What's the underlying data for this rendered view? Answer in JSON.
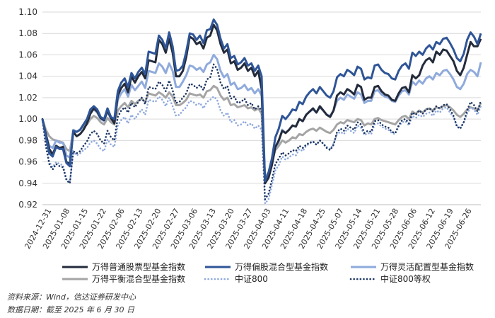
{
  "chart_data": {
    "type": "line",
    "y_ticks": [
      "0.92",
      "0.94",
      "0.96",
      "0.98",
      "1.00",
      "1.02",
      "1.04",
      "1.06",
      "1.08",
      "1.10"
    ],
    "ylim": [
      0.92,
      1.1
    ],
    "x_ticks": [
      "2024-12-31",
      "2025-01-08",
      "2025-01-15",
      "2025-01-22",
      "2025-02-06",
      "2025-02-13",
      "2025-02-20",
      "2025-02-27",
      "2025-03-06",
      "2025-03-13",
      "2025-03-20",
      "2025-03-27",
      "2025-04-03",
      "2025-04-11",
      "2025-04-18",
      "2025-04-25",
      "2025-05-07",
      "2025-05-14",
      "2025-05-21",
      "2025-05-28",
      "2025-06-06",
      "2025-06-12",
      "2025-06-19",
      "2025-06-26"
    ],
    "grid": true,
    "legend_position": "bottom",
    "series": [
      {
        "name": "万得普通股票型基金指数",
        "color": "#232b3b",
        "style": "solid",
        "values": [
          1.0,
          0.986,
          0.972,
          0.967,
          0.975,
          0.973,
          0.974,
          0.96,
          0.958,
          0.988,
          0.984,
          0.986,
          0.99,
          0.996,
          1.005,
          1.01,
          1.007,
          1.001,
          0.999,
          1.008,
          1.001,
          0.996,
          1.022,
          1.029,
          1.033,
          1.025,
          1.04,
          1.034,
          1.04,
          1.044,
          1.038,
          1.055,
          1.054,
          1.053,
          1.074,
          1.07,
          1.062,
          1.075,
          1.062,
          1.04,
          1.04,
          1.045,
          1.058,
          1.077,
          1.075,
          1.07,
          1.072,
          1.066,
          1.076,
          1.078,
          1.088,
          1.083,
          1.07,
          1.062,
          1.065,
          1.052,
          1.054,
          1.046,
          1.048,
          1.052,
          1.045,
          1.048,
          1.04,
          1.045,
          1.028,
          0.94,
          0.945,
          0.957,
          0.974,
          0.98,
          0.989,
          0.987,
          0.99,
          0.994,
          0.993,
          1.0,
          0.998,
          1.004,
          1.007,
          1.01,
          1.006,
          1.012,
          1.008,
          1.004,
          1.002,
          1.008,
          1.022,
          1.025,
          1.023,
          1.028,
          1.026,
          1.023,
          1.032,
          1.03,
          1.018,
          1.02,
          1.02,
          1.03,
          1.031,
          1.026,
          1.023,
          1.022,
          1.018,
          1.017,
          1.024,
          1.029,
          1.03,
          1.025,
          1.041,
          1.038,
          1.041,
          1.05,
          1.055,
          1.057,
          1.053,
          1.063,
          1.06,
          1.065,
          1.064,
          1.059,
          1.054,
          1.045,
          1.041,
          1.048,
          1.06,
          1.072,
          1.068,
          1.068,
          1.075
        ]
      },
      {
        "name": "万得偏股混合型基金指数",
        "color": "#2f5597",
        "style": "solid",
        "values": [
          1.0,
          0.984,
          0.968,
          0.965,
          0.974,
          0.972,
          0.972,
          0.959,
          0.956,
          0.989,
          0.988,
          0.99,
          0.995,
          1.0,
          1.009,
          1.012,
          1.009,
          1.002,
          1.0,
          1.01,
          1.002,
          1.0,
          1.026,
          1.034,
          1.038,
          1.03,
          1.043,
          1.038,
          1.044,
          1.048,
          1.042,
          1.063,
          1.062,
          1.061,
          1.078,
          1.074,
          1.066,
          1.081,
          1.068,
          1.045,
          1.046,
          1.05,
          1.063,
          1.08,
          1.079,
          1.074,
          1.078,
          1.071,
          1.083,
          1.084,
          1.093,
          1.088,
          1.075,
          1.066,
          1.07,
          1.057,
          1.059,
          1.051,
          1.053,
          1.057,
          1.05,
          1.052,
          1.045,
          1.05,
          1.04,
          0.942,
          0.95,
          0.963,
          0.983,
          0.991,
          1.003,
          1.0,
          1.004,
          1.009,
          1.008,
          1.016,
          1.014,
          1.021,
          1.025,
          1.028,
          1.024,
          1.03,
          1.026,
          1.022,
          1.02,
          1.026,
          1.039,
          1.042,
          1.04,
          1.046,
          1.044,
          1.041,
          1.049,
          1.047,
          1.037,
          1.039,
          1.038,
          1.05,
          1.051,
          1.046,
          1.043,
          1.042,
          1.038,
          1.037,
          1.045,
          1.05,
          1.052,
          1.047,
          1.062,
          1.059,
          1.063,
          1.06,
          1.066,
          1.069,
          1.065,
          1.072,
          1.07,
          1.075,
          1.076,
          1.071,
          1.065,
          1.057,
          1.054,
          1.061,
          1.074,
          1.081,
          1.077,
          1.07,
          1.08
        ]
      },
      {
        "name": "万得灵活配置型基金指数",
        "color": "#8faadc",
        "style": "solid",
        "values": [
          1.0,
          0.986,
          0.975,
          0.973,
          0.98,
          0.978,
          0.978,
          0.966,
          0.964,
          0.99,
          0.988,
          0.99,
          0.995,
          0.998,
          1.006,
          1.009,
          1.006,
          1.0,
          0.998,
          1.007,
          1.0,
          0.997,
          1.018,
          1.024,
          1.028,
          1.021,
          1.032,
          1.027,
          1.031,
          1.035,
          1.029,
          1.045,
          1.044,
          1.043,
          1.052,
          1.049,
          1.043,
          1.052,
          1.045,
          1.03,
          1.03,
          1.035,
          1.041,
          1.05,
          1.049,
          1.046,
          1.048,
          1.044,
          1.051,
          1.053,
          1.06,
          1.056,
          1.045,
          1.039,
          1.042,
          1.032,
          1.034,
          1.028,
          1.029,
          1.032,
          1.027,
          1.029,
          1.024,
          1.028,
          1.022,
          0.94,
          0.946,
          0.957,
          0.973,
          0.979,
          0.99,
          0.987,
          0.99,
          0.994,
          0.993,
          1.0,
          0.998,
          1.004,
          1.007,
          1.009,
          1.006,
          1.011,
          1.008,
          1.004,
          1.003,
          1.008,
          1.017,
          1.02,
          1.018,
          1.023,
          1.021,
          1.019,
          1.025,
          1.023,
          1.015,
          1.017,
          1.017,
          1.026,
          1.027,
          1.023,
          1.021,
          1.02,
          1.017,
          1.016,
          1.022,
          1.026,
          1.027,
          1.023,
          1.035,
          1.032,
          1.036,
          1.033,
          1.038,
          1.04,
          1.037,
          1.043,
          1.041,
          1.045,
          1.046,
          1.042,
          1.037,
          1.03,
          1.028,
          1.033,
          1.042,
          1.046,
          1.044,
          1.04,
          1.053
        ]
      },
      {
        "name": "万得平衡混合型基金指数",
        "color": "#a5a5a5",
        "style": "solid",
        "values": [
          1.0,
          0.99,
          0.984,
          0.981,
          0.98,
          0.979,
          0.978,
          0.972,
          0.97,
          0.989,
          0.988,
          0.99,
          0.993,
          0.995,
          1.0,
          1.003,
          1.001,
          0.997,
          0.995,
          1.001,
          0.997,
          0.995,
          1.008,
          1.012,
          1.015,
          1.011,
          1.017,
          1.014,
          1.017,
          1.019,
          1.016,
          1.024,
          1.023,
          1.022,
          1.025,
          1.023,
          1.02,
          1.025,
          1.021,
          1.013,
          1.013,
          1.015,
          1.018,
          1.024,
          1.023,
          1.022,
          1.023,
          1.02,
          1.026,
          1.027,
          1.031,
          1.029,
          1.022,
          1.018,
          1.02,
          1.013,
          1.014,
          1.011,
          1.012,
          1.013,
          1.01,
          1.011,
          1.008,
          1.01,
          1.005,
          0.946,
          0.95,
          0.96,
          0.971,
          0.975,
          0.98,
          0.978,
          0.98,
          0.983,
          0.982,
          0.986,
          0.985,
          0.988,
          0.99,
          0.991,
          0.989,
          0.992,
          0.99,
          0.988,
          0.987,
          0.99,
          0.995,
          0.997,
          0.996,
          0.999,
          0.998,
          0.997,
          1.0,
          0.999,
          0.994,
          0.996,
          0.995,
          1.0,
          1.001,
          0.999,
          0.998,
          0.997,
          0.996,
          0.995,
          0.999,
          1.002,
          1.003,
          1.0,
          1.007,
          1.005,
          1.008,
          1.006,
          1.009,
          1.01,
          1.008,
          1.011,
          1.01,
          1.012,
          1.013,
          1.011,
          1.008,
          1.004,
          1.002,
          1.005,
          1.009,
          1.011,
          1.01,
          1.008,
          1.015
        ]
      },
      {
        "name": "中证800",
        "color": "#8faadc",
        "style": "dotted",
        "values": [
          1.0,
          0.978,
          0.96,
          0.955,
          0.96,
          0.958,
          0.957,
          0.944,
          0.941,
          0.97,
          0.966,
          0.968,
          0.971,
          0.973,
          0.978,
          0.98,
          0.977,
          0.972,
          0.97,
          0.981,
          0.976,
          0.974,
          0.994,
          0.999,
          1.002,
          0.996,
          1.004,
          1.0,
          1.005,
          1.009,
          1.004,
          1.018,
          1.017,
          1.016,
          1.021,
          1.018,
          1.012,
          1.02,
          1.012,
          1.003,
          1.004,
          1.008,
          1.011,
          1.017,
          1.016,
          1.013,
          1.015,
          1.01,
          1.016,
          1.018,
          1.021,
          1.018,
          1.008,
          1.003,
          1.006,
          0.997,
          0.999,
          0.994,
          0.995,
          0.998,
          0.994,
          0.996,
          0.991,
          0.994,
          0.99,
          0.921,
          0.925,
          0.938,
          0.952,
          0.957,
          0.965,
          0.962,
          0.964,
          0.967,
          0.966,
          0.972,
          0.97,
          0.975,
          0.977,
          0.979,
          0.976,
          0.98,
          0.977,
          0.974,
          0.972,
          0.977,
          0.986,
          0.988,
          0.986,
          0.991,
          0.989,
          0.987,
          0.994,
          0.992,
          0.985,
          0.987,
          0.986,
          0.995,
          0.996,
          0.993,
          0.991,
          0.99,
          0.987,
          0.986,
          0.993,
          0.997,
          0.998,
          0.994,
          1.003,
          1.001,
          1.004,
          1.002,
          1.005,
          1.006,
          1.003,
          1.008,
          1.006,
          1.01,
          1.011,
          1.006,
          1.002,
          0.994,
          0.992,
          0.997,
          1.005,
          1.011,
          1.009,
          1.004,
          1.012
        ]
      },
      {
        "name": "中证800等权",
        "color": "#1f3864",
        "style": "dotted",
        "values": [
          1.0,
          0.975,
          0.958,
          0.953,
          0.958,
          0.956,
          0.955,
          0.943,
          0.94,
          0.97,
          0.968,
          0.97,
          0.975,
          0.979,
          0.986,
          0.989,
          0.986,
          0.98,
          0.977,
          0.989,
          0.983,
          0.98,
          1.002,
          1.008,
          1.011,
          1.006,
          1.015,
          1.011,
          1.016,
          1.02,
          1.014,
          1.03,
          1.029,
          1.028,
          1.035,
          1.032,
          1.026,
          1.036,
          1.027,
          1.015,
          1.016,
          1.02,
          1.024,
          1.033,
          1.032,
          1.029,
          1.032,
          1.027,
          1.037,
          1.039,
          1.051,
          1.047,
          1.034,
          1.028,
          1.031,
          1.019,
          1.021,
          1.015,
          1.016,
          1.019,
          1.013,
          1.015,
          1.009,
          1.012,
          1.008,
          0.925,
          0.93,
          0.943,
          0.958,
          0.963,
          0.969,
          0.966,
          0.968,
          0.971,
          0.97,
          0.975,
          0.973,
          0.976,
          0.978,
          0.979,
          0.976,
          0.98,
          0.977,
          0.973,
          0.971,
          0.976,
          0.988,
          0.991,
          0.989,
          0.994,
          0.992,
          0.99,
          0.997,
          0.995,
          0.987,
          0.989,
          0.988,
          0.998,
          0.999,
          0.995,
          0.993,
          0.992,
          0.988,
          0.987,
          0.994,
          0.999,
          1.0,
          0.996,
          1.006,
          1.004,
          1.008,
          1.005,
          1.009,
          1.01,
          1.007,
          1.012,
          1.01,
          1.013,
          1.014,
          1.009,
          1.003,
          0.993,
          0.991,
          0.997,
          1.008,
          1.016,
          1.013,
          1.007,
          1.017
        ]
      }
    ]
  },
  "notes": {
    "source": "资料来源：Wind，信达证券研发中心",
    "date": "数据日期：截至 2025 年 6 月 30 日"
  }
}
